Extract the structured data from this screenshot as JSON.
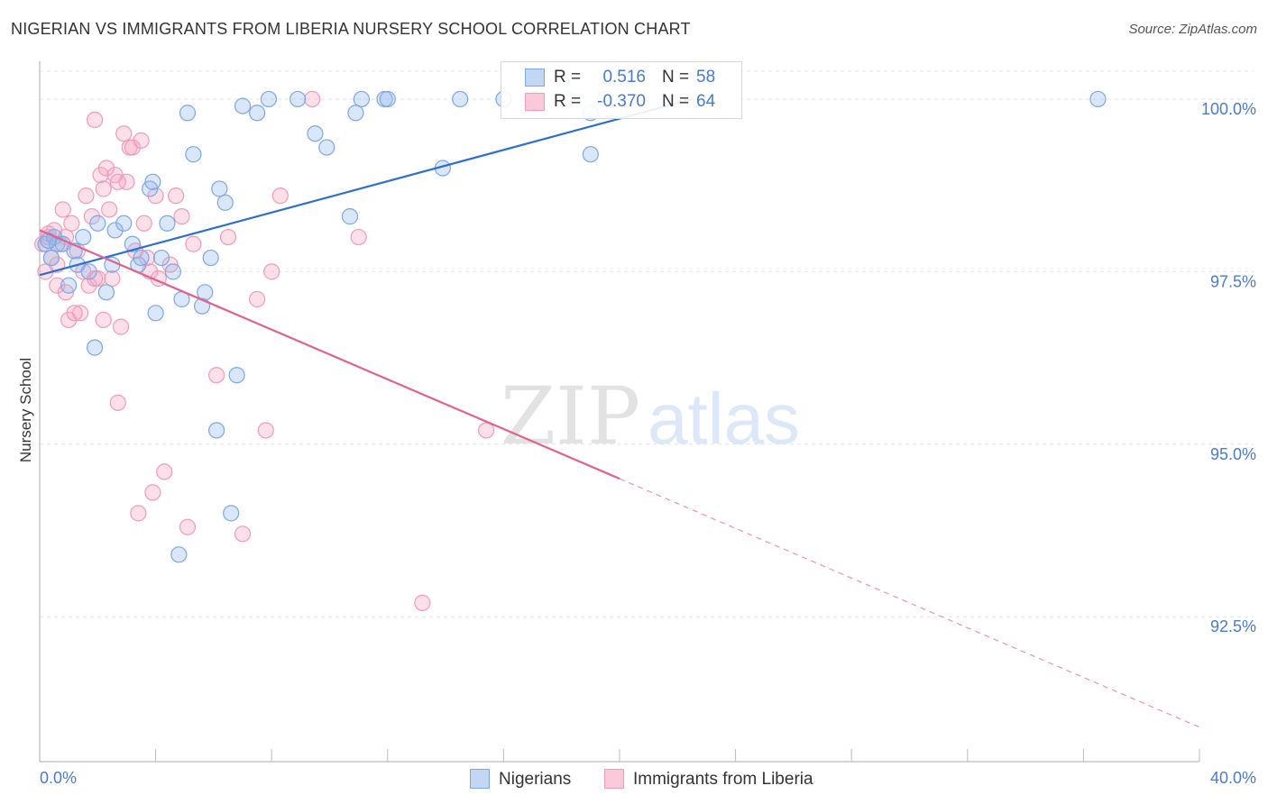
{
  "header": {
    "title": "NIGERIAN VS IMMIGRANTS FROM LIBERIA NURSERY SCHOOL CORRELATION CHART",
    "source": "Source: ZipAtlas.com"
  },
  "watermark": {
    "part1": "ZIP",
    "part2": "atlas"
  },
  "legend": {
    "rows": [
      {
        "r_label": "R =",
        "r_value": "0.516",
        "n_label": "N =",
        "n_value": "58"
      },
      {
        "r_label": "R =",
        "r_value": "-0.370",
        "n_label": "N =",
        "n_value": "64"
      }
    ]
  },
  "bottom_legend": {
    "items": [
      "Nigerians",
      "Immigrants from Liberia"
    ]
  },
  "chart_data": {
    "type": "scatter",
    "title": "NIGERIAN VS IMMIGRANTS FROM LIBERIA NURSERY SCHOOL CORRELATION CHART",
    "xlabel": "",
    "ylabel": "Nursery School",
    "xlim": [
      0,
      40
    ],
    "ylim": [
      90.4,
      100.6
    ],
    "x_tick_labels": [
      "0.0%",
      "40.0%"
    ],
    "y_ticks": [
      92.5,
      95.0,
      97.5,
      100.0
    ],
    "y_tick_labels": [
      "92.5%",
      "95.0%",
      "97.5%",
      "100.0%"
    ],
    "grid": "horizontal dashed",
    "legend_position": "top-center",
    "colors": {
      "nigerians": "#7ba7e6",
      "liberia": "#f09ab8",
      "nigerians_line": "#2f6fcc",
      "liberia_line": "#e0628f"
    },
    "series": [
      {
        "name": "Nigerians",
        "r": 0.516,
        "n": 58,
        "trend": {
          "x": [
            0,
            22.5
          ],
          "y": [
            97.45,
            100.0
          ]
        },
        "points": [
          [
            0.2,
            97.9
          ],
          [
            0.4,
            97.7
          ],
          [
            0.5,
            98.0
          ],
          [
            0.6,
            97.9
          ],
          [
            0.8,
            97.9
          ],
          [
            1.0,
            97.3
          ],
          [
            1.2,
            97.8
          ],
          [
            1.3,
            97.6
          ],
          [
            1.5,
            98.0
          ],
          [
            1.7,
            97.5
          ],
          [
            1.9,
            96.4
          ],
          [
            2.0,
            98.2
          ],
          [
            2.3,
            97.2
          ],
          [
            2.5,
            97.6
          ],
          [
            2.6,
            98.1
          ],
          [
            2.9,
            98.2
          ],
          [
            3.2,
            97.9
          ],
          [
            3.4,
            97.6
          ],
          [
            3.5,
            97.7
          ],
          [
            3.8,
            98.7
          ],
          [
            3.9,
            98.8
          ],
          [
            4.0,
            96.9
          ],
          [
            4.2,
            97.7
          ],
          [
            4.4,
            98.2
          ],
          [
            4.6,
            97.5
          ],
          [
            4.9,
            97.1
          ],
          [
            5.1,
            99.8
          ],
          [
            5.3,
            99.2
          ],
          [
            5.6,
            97.0
          ],
          [
            5.7,
            97.2
          ],
          [
            5.9,
            97.7
          ],
          [
            6.1,
            95.2
          ],
          [
            6.2,
            98.7
          ],
          [
            6.4,
            98.5
          ],
          [
            6.6,
            94.0
          ],
          [
            6.8,
            96.0
          ],
          [
            7.0,
            99.9
          ],
          [
            7.5,
            99.8
          ],
          [
            7.9,
            100.0
          ],
          [
            8.9,
            100.0
          ],
          [
            0.3,
            97.95
          ],
          [
            9.5,
            99.5
          ],
          [
            9.9,
            99.3
          ],
          [
            10.7,
            98.3
          ],
          [
            10.9,
            99.8
          ],
          [
            11.1,
            100.0
          ],
          [
            11.9,
            100.0
          ],
          [
            12.0,
            100.0
          ],
          [
            13.9,
            99.0
          ],
          [
            14.5,
            100.0
          ],
          [
            16.0,
            100.0
          ],
          [
            17.0,
            100.0
          ],
          [
            18.2,
            100.0
          ],
          [
            19.0,
            99.8
          ],
          [
            19.5,
            100.0
          ],
          [
            19.0,
            99.2
          ],
          [
            4.8,
            93.4
          ],
          [
            36.5,
            100.0
          ]
        ]
      },
      {
        "name": "Immigrants from Liberia",
        "r": -0.37,
        "n": 64,
        "trend": {
          "x": [
            0,
            20
          ],
          "y": [
            98.1,
            94.5
          ]
        },
        "trend_extrapolated": {
          "x": [
            20,
            40
          ],
          "y": [
            94.5,
            90.9
          ]
        },
        "points": [
          [
            0.1,
            97.9
          ],
          [
            0.2,
            97.5
          ],
          [
            0.3,
            98.0
          ],
          [
            0.5,
            98.1
          ],
          [
            0.6,
            97.3
          ],
          [
            0.7,
            97.9
          ],
          [
            0.8,
            98.4
          ],
          [
            0.9,
            98.0
          ],
          [
            1.0,
            96.8
          ],
          [
            1.1,
            98.2
          ],
          [
            1.3,
            97.8
          ],
          [
            1.4,
            96.9
          ],
          [
            1.5,
            97.5
          ],
          [
            1.6,
            98.6
          ],
          [
            1.7,
            97.3
          ],
          [
            1.8,
            98.3
          ],
          [
            1.9,
            99.7
          ],
          [
            2.0,
            97.4
          ],
          [
            2.1,
            98.9
          ],
          [
            2.2,
            98.7
          ],
          [
            2.3,
            99.0
          ],
          [
            2.4,
            98.4
          ],
          [
            2.5,
            97.4
          ],
          [
            2.6,
            98.9
          ],
          [
            2.7,
            95.6
          ],
          [
            2.8,
            96.7
          ],
          [
            2.9,
            99.5
          ],
          [
            3.0,
            98.8
          ],
          [
            3.1,
            99.3
          ],
          [
            3.2,
            99.3
          ],
          [
            3.3,
            97.8
          ],
          [
            3.4,
            94.0
          ],
          [
            3.5,
            99.4
          ],
          [
            3.6,
            98.2
          ],
          [
            3.8,
            97.5
          ],
          [
            3.9,
            94.3
          ],
          [
            4.1,
            97.4
          ],
          [
            4.3,
            94.6
          ],
          [
            4.5,
            97.6
          ],
          [
            4.7,
            98.6
          ],
          [
            4.9,
            98.3
          ],
          [
            5.1,
            93.8
          ],
          [
            5.3,
            97.9
          ],
          [
            6.1,
            96.0
          ],
          [
            6.5,
            98.0
          ],
          [
            7.0,
            93.7
          ],
          [
            7.5,
            97.1
          ],
          [
            7.8,
            95.2
          ],
          [
            8.0,
            97.5
          ],
          [
            8.3,
            98.6
          ],
          [
            9.4,
            100.0
          ],
          [
            11.0,
            98.0
          ],
          [
            13.2,
            92.7
          ],
          [
            15.4,
            95.2
          ],
          [
            0.4,
            97.7
          ],
          [
            0.9,
            97.2
          ],
          [
            1.2,
            96.9
          ],
          [
            2.2,
            96.8
          ],
          [
            0.6,
            97.6
          ],
          [
            1.9,
            97.4
          ],
          [
            2.7,
            98.8
          ],
          [
            3.7,
            97.7
          ],
          [
            0.3,
            98.05
          ],
          [
            4.0,
            98.6
          ]
        ]
      }
    ]
  }
}
